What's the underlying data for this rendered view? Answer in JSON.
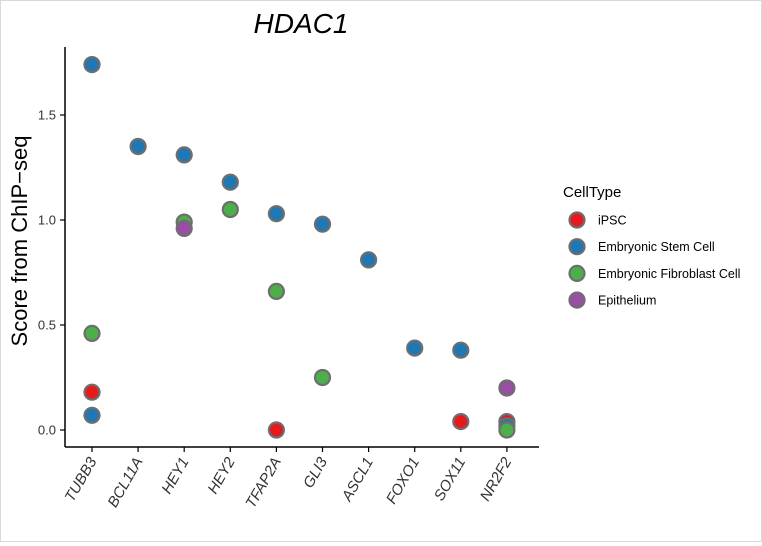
{
  "chart_data": {
    "type": "scatter",
    "title": "HDAC1",
    "xlabel": "",
    "ylabel": "Score from ChIP−seq",
    "categories": [
      "TUBB3",
      "BCL11A",
      "HEY1",
      "HEY2",
      "TFAP2A",
      "GLI3",
      "ASCL1",
      "FOXO1",
      "SOX11",
      "NR2F2"
    ],
    "yticks": [
      0.0,
      0.5,
      1.0,
      1.5
    ],
    "ytick_labels": [
      "0.0",
      "0.5",
      "1.0",
      "1.5"
    ],
    "ylim": [
      -0.04,
      1.82
    ],
    "grid": false,
    "legend": {
      "title": "CellType",
      "placement": "right",
      "entries": [
        {
          "name": "iPSC",
          "color": "#e41a1c"
        },
        {
          "name": "Embryonic Stem Cell",
          "color": "#1f78b4"
        },
        {
          "name": "Embryonic Fibroblast Cell",
          "color": "#4daf4a"
        },
        {
          "name": "Epithelium",
          "color": "#984ea3"
        }
      ]
    },
    "series": [
      {
        "name": "iPSC",
        "color": "#e41a1c",
        "points": [
          {
            "x": "TUBB3",
            "y": 0.18
          },
          {
            "x": "TFAP2A",
            "y": 0.0
          },
          {
            "x": "SOX11",
            "y": 0.04
          },
          {
            "x": "NR2F2",
            "y": 0.04
          }
        ]
      },
      {
        "name": "Embryonic Stem Cell",
        "color": "#1f78b4",
        "points": [
          {
            "x": "TUBB3",
            "y": 1.74
          },
          {
            "x": "TUBB3",
            "y": 0.07
          },
          {
            "x": "BCL11A",
            "y": 1.35
          },
          {
            "x": "HEY1",
            "y": 1.31
          },
          {
            "x": "HEY2",
            "y": 1.18
          },
          {
            "x": "TFAP2A",
            "y": 1.03
          },
          {
            "x": "GLI3",
            "y": 0.98
          },
          {
            "x": "ASCL1",
            "y": 0.81
          },
          {
            "x": "FOXO1",
            "y": 0.39
          },
          {
            "x": "SOX11",
            "y": 0.38
          },
          {
            "x": "NR2F2",
            "y": 0.02
          }
        ]
      },
      {
        "name": "Embryonic Fibroblast Cell",
        "color": "#4daf4a",
        "points": [
          {
            "x": "TUBB3",
            "y": 0.46
          },
          {
            "x": "HEY1",
            "y": 0.99
          },
          {
            "x": "HEY2",
            "y": 1.05
          },
          {
            "x": "TFAP2A",
            "y": 0.66
          },
          {
            "x": "GLI3",
            "y": 0.25
          },
          {
            "x": "NR2F2",
            "y": 0.0
          }
        ]
      },
      {
        "name": "Epithelium",
        "color": "#984ea3",
        "points": [
          {
            "x": "HEY1",
            "y": 0.96
          },
          {
            "x": "NR2F2",
            "y": 0.2
          }
        ]
      }
    ],
    "point_outline_color": "#6e6e6e"
  }
}
